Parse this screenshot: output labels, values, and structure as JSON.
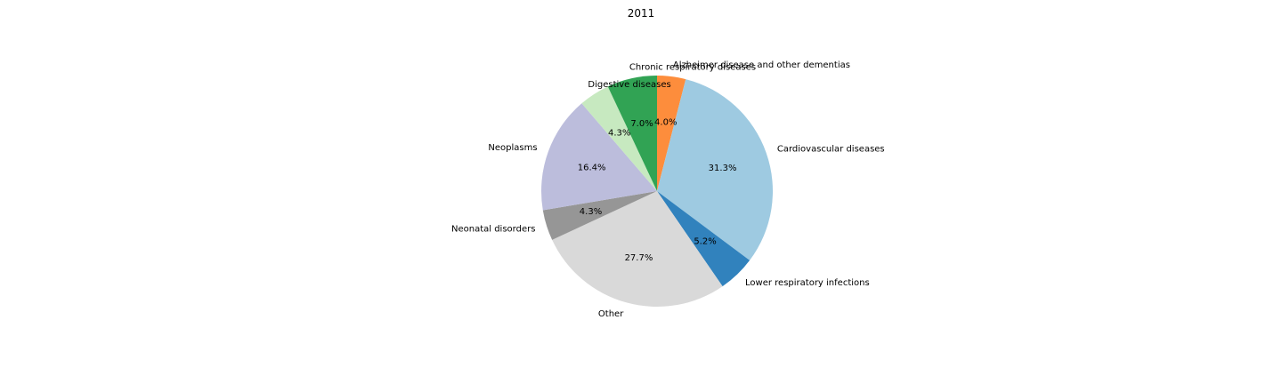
{
  "chart_data": {
    "type": "pie",
    "title": "2011",
    "start_angle_deg": 90,
    "direction": "clockwise",
    "slices": [
      {
        "label": "Alzheimer disease and other dementias",
        "value": 4.0,
        "pct_label": "4.0%",
        "color": "#fd8d3c",
        "label_anchor": "start"
      },
      {
        "label": "Cardiovascular diseases",
        "value": 31.3,
        "pct_label": "31.3%",
        "color": "#9ecae1",
        "label_anchor": "start"
      },
      {
        "label": "Lower respiratory infections",
        "value": 5.2,
        "pct_label": "5.2%",
        "color": "#3182bd",
        "label_anchor": "start"
      },
      {
        "label": "Other",
        "value": 27.7,
        "pct_label": "27.7%",
        "color": "#d9d9d9",
        "label_anchor": "end"
      },
      {
        "label": "Neonatal disorders",
        "value": 4.3,
        "pct_label": "4.3%",
        "color": "#969696",
        "label_anchor": "end"
      },
      {
        "label": "Neoplasms",
        "value": 16.4,
        "pct_label": "16.4%",
        "color": "#bcbddc",
        "label_anchor": "end"
      },
      {
        "label": "Digestive diseases",
        "value": 4.3,
        "pct_label": "4.3%",
        "color": "#c7e9c0",
        "label_anchor": "start"
      },
      {
        "label": "Chronic respiratory diseases",
        "value": 7.0,
        "pct_label": "7.0%",
        "color": "#31a354",
        "label_anchor": "start"
      }
    ]
  }
}
